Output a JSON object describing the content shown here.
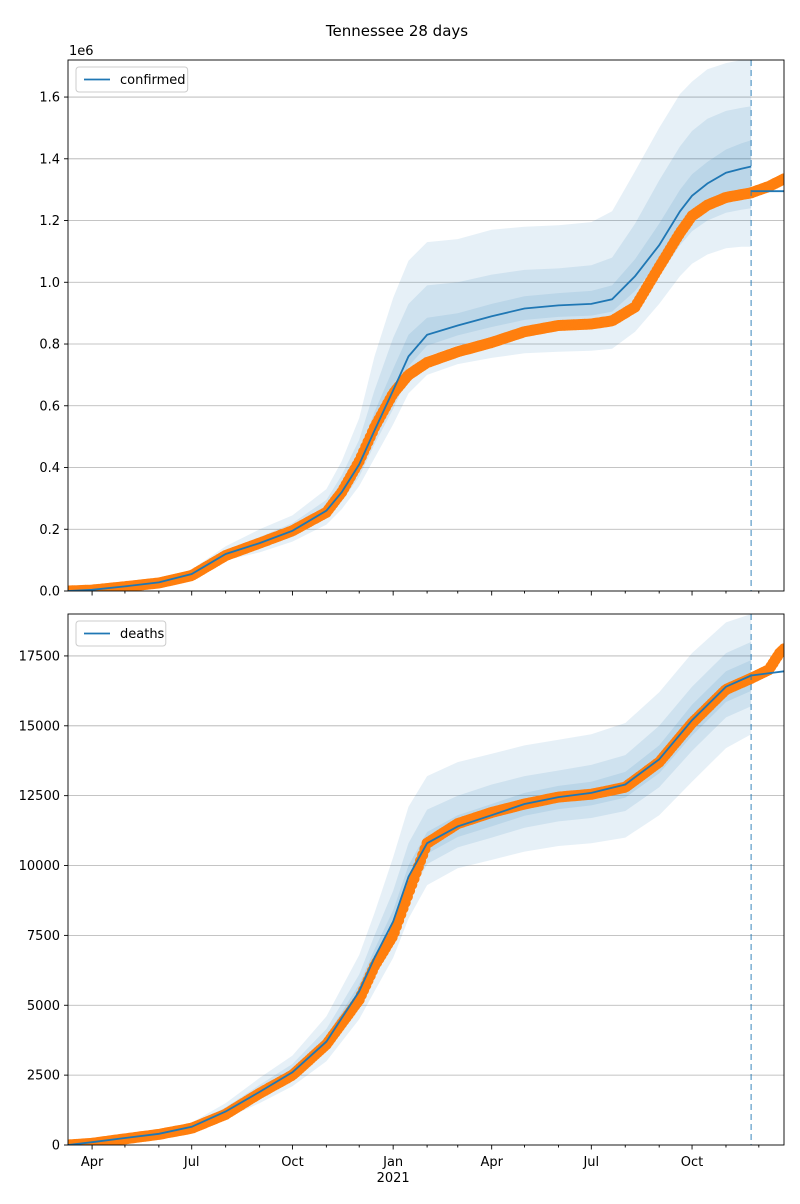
{
  "figure": {
    "title": "Tennessee 28 days"
  },
  "colors": {
    "model_line": "#1f77b4",
    "observed_points": "#ff7f0e",
    "band": "#1f77b4",
    "grid": "#b0b0b0",
    "forecast_marker": "#1f77b4"
  },
  "xaxis": {
    "start": "2020-03-10",
    "end": "2021-12-24",
    "ticks": [
      {
        "date": "2020-04-01",
        "label": "Apr"
      },
      {
        "date": "2020-07-01",
        "label": "Jul"
      },
      {
        "date": "2020-10-01",
        "label": "Oct"
      },
      {
        "date": "2021-01-01",
        "label": "Jan"
      },
      {
        "date": "2021-04-01",
        "label": "Apr"
      },
      {
        "date": "2021-07-01",
        "label": "Jul"
      },
      {
        "date": "2021-10-01",
        "label": "Oct"
      }
    ],
    "year_label": "2021",
    "year_label_date": "2021-01-01",
    "forecast_marker_date": "2021-11-24"
  },
  "chart_data": [
    {
      "type": "line",
      "legend": "confirmed",
      "legend_position": "upper-left",
      "grid": "horizontal",
      "ylim": [
        0,
        1720000
      ],
      "yticks": [
        0,
        200000,
        400000,
        600000,
        800000,
        1000000,
        1200000,
        1400000,
        1600000
      ],
      "ytick_labels": [
        "0.0",
        "0.2",
        "0.4",
        "0.6",
        "0.8",
        "1.0",
        "1.2",
        "1.4",
        "1.6"
      ],
      "offset_label": "1e6",
      "model": {
        "x": [
          "2020-03-10",
          "2020-04-01",
          "2020-05-01",
          "2020-06-01",
          "2020-07-01",
          "2020-08-01",
          "2020-09-01",
          "2020-10-01",
          "2020-11-01",
          "2020-11-15",
          "2020-12-01",
          "2020-12-15",
          "2021-01-01",
          "2021-01-15",
          "2021-02-01",
          "2021-03-01",
          "2021-04-01",
          "2021-05-01",
          "2021-06-01",
          "2021-07-01",
          "2021-07-20",
          "2021-08-10",
          "2021-09-01",
          "2021-09-20",
          "2021-10-01",
          "2021-10-15",
          "2021-11-01",
          "2021-11-15",
          "2021-11-24"
        ],
        "y": [
          0,
          4000,
          15000,
          28000,
          55000,
          120000,
          155000,
          195000,
          260000,
          320000,
          410000,
          520000,
          650000,
          760000,
          830000,
          860000,
          890000,
          915000,
          925000,
          930000,
          945000,
          1020000,
          1120000,
          1230000,
          1280000,
          1320000,
          1355000,
          1368000,
          1375000
        ]
      },
      "model_tail": {
        "x": [
          "2021-11-24",
          "2021-12-24"
        ],
        "y": [
          1295000,
          1295000
        ]
      },
      "bands": [
        {
          "x": [
            "2020-03-10",
            "2020-04-01",
            "2020-05-01",
            "2020-06-01",
            "2020-07-01",
            "2020-08-01",
            "2020-09-01",
            "2020-10-01",
            "2020-11-01",
            "2020-11-15",
            "2020-12-01",
            "2020-12-15",
            "2021-01-01",
            "2021-01-15",
            "2021-02-01",
            "2021-03-01",
            "2021-04-01",
            "2021-05-01",
            "2021-06-01",
            "2021-07-01",
            "2021-07-20",
            "2021-08-10",
            "2021-09-01",
            "2021-09-20",
            "2021-10-01",
            "2021-10-15",
            "2021-11-01",
            "2021-11-15",
            "2021-11-24"
          ],
          "lower": [
            0,
            3000,
            11000,
            20000,
            45000,
            100000,
            125000,
            160000,
            215000,
            265000,
            340000,
            430000,
            540000,
            640000,
            700000,
            735000,
            755000,
            770000,
            775000,
            778000,
            785000,
            840000,
            930000,
            1020000,
            1060000,
            1090000,
            1110000,
            1115000,
            1115000
          ],
          "upper": [
            0,
            6000,
            20000,
            38000,
            70000,
            145000,
            200000,
            245000,
            330000,
            420000,
            560000,
            760000,
            950000,
            1070000,
            1130000,
            1140000,
            1170000,
            1180000,
            1185000,
            1195000,
            1230000,
            1360000,
            1500000,
            1610000,
            1650000,
            1690000,
            1710000,
            1720000,
            1720000
          ]
        },
        {
          "x": [
            "2020-03-10",
            "2020-04-01",
            "2020-05-01",
            "2020-06-01",
            "2020-07-01",
            "2020-08-01",
            "2020-09-01",
            "2020-10-01",
            "2020-11-01",
            "2020-11-15",
            "2020-12-01",
            "2020-12-15",
            "2021-01-01",
            "2021-01-15",
            "2021-02-01",
            "2021-03-01",
            "2021-04-01",
            "2021-05-01",
            "2021-06-01",
            "2021-07-01",
            "2021-07-20",
            "2021-08-10",
            "2021-09-01",
            "2021-09-20",
            "2021-10-01",
            "2021-10-15",
            "2021-11-01",
            "2021-11-15",
            "2021-11-24"
          ],
          "lower": [
            0,
            3500,
            12500,
            23000,
            49000,
            108000,
            138000,
            175000,
            235000,
            290000,
            370000,
            475000,
            590000,
            695000,
            760000,
            795000,
            820000,
            840000,
            848000,
            852000,
            862000,
            925000,
            1020000,
            1120000,
            1165000,
            1200000,
            1225000,
            1235000,
            1240000
          ],
          "upper": [
            0,
            5000,
            18000,
            33000,
            63000,
            133000,
            175000,
            220000,
            295000,
            375000,
            490000,
            650000,
            820000,
            930000,
            990000,
            1000000,
            1025000,
            1040000,
            1045000,
            1055000,
            1080000,
            1190000,
            1330000,
            1440000,
            1490000,
            1530000,
            1555000,
            1565000,
            1570000
          ]
        },
        {
          "x": [
            "2020-03-10",
            "2020-04-01",
            "2020-05-01",
            "2020-06-01",
            "2020-07-01",
            "2020-08-01",
            "2020-09-01",
            "2020-10-01",
            "2020-11-01",
            "2020-11-15",
            "2020-12-01",
            "2020-12-15",
            "2021-01-01",
            "2021-01-15",
            "2021-02-01",
            "2021-03-01",
            "2021-04-01",
            "2021-05-01",
            "2021-06-01",
            "2021-07-01",
            "2021-07-20",
            "2021-08-10",
            "2021-09-01",
            "2021-09-20",
            "2021-10-01",
            "2021-10-15",
            "2021-11-01",
            "2021-11-15",
            "2021-11-24"
          ],
          "lower": [
            0,
            3800,
            13500,
            25500,
            52000,
            114000,
            147000,
            186000,
            248000,
            305000,
            390000,
            498000,
            622000,
            728000,
            795000,
            828000,
            855000,
            878000,
            888000,
            892000,
            905000,
            972000,
            1068000,
            1175000,
            1222000,
            1260000,
            1290000,
            1302000,
            1308000
          ],
          "upper": [
            0,
            4500,
            16500,
            31000,
            59000,
            127000,
            164000,
            206000,
            275000,
            345000,
            445000,
            580000,
            720000,
            830000,
            885000,
            900000,
            930000,
            955000,
            965000,
            972000,
            990000,
            1075000,
            1190000,
            1300000,
            1350000,
            1390000,
            1430000,
            1450000,
            1460000
          ]
        }
      ],
      "observed": {
        "x": [
          "2020-03-10",
          "2020-04-01",
          "2020-05-01",
          "2020-06-01",
          "2020-07-01",
          "2020-08-01",
          "2020-09-01",
          "2020-10-01",
          "2020-11-01",
          "2020-11-15",
          "2020-12-01",
          "2020-12-15",
          "2021-01-01",
          "2021-01-15",
          "2021-02-01",
          "2021-03-01",
          "2021-04-01",
          "2021-05-01",
          "2021-06-01",
          "2021-07-01",
          "2021-07-20",
          "2021-08-10",
          "2021-09-01",
          "2021-09-20",
          "2021-10-01",
          "2021-10-15",
          "2021-11-01",
          "2021-11-24",
          "2021-12-10",
          "2021-12-24"
        ],
        "y": [
          0,
          3000,
          14000,
          26000,
          50000,
          115000,
          155000,
          195000,
          255000,
          320000,
          420000,
          530000,
          640000,
          700000,
          740000,
          775000,
          805000,
          840000,
          860000,
          865000,
          875000,
          920000,
          1050000,
          1160000,
          1215000,
          1250000,
          1275000,
          1290000,
          1310000,
          1335000
        ]
      }
    },
    {
      "type": "line",
      "legend": "deaths",
      "legend_position": "upper-left",
      "grid": "horizontal",
      "ylim": [
        0,
        19000
      ],
      "yticks": [
        0,
        2500,
        5000,
        7500,
        10000,
        12500,
        15000,
        17500
      ],
      "ytick_labels": [
        "0",
        "2500",
        "5000",
        "7500",
        "10000",
        "12500",
        "15000",
        "17500"
      ],
      "model": {
        "x": [
          "2020-03-10",
          "2020-04-01",
          "2020-05-01",
          "2020-06-01",
          "2020-07-01",
          "2020-08-01",
          "2020-09-01",
          "2020-10-01",
          "2020-11-01",
          "2020-12-01",
          "2020-12-15",
          "2021-01-01",
          "2021-01-15",
          "2021-02-01",
          "2021-03-01",
          "2021-04-01",
          "2021-05-01",
          "2021-06-01",
          "2021-07-01",
          "2021-08-01",
          "2021-09-01",
          "2021-10-01",
          "2021-11-01",
          "2021-11-24"
        ],
        "y": [
          0,
          100,
          250,
          400,
          650,
          1200,
          1900,
          2600,
          3700,
          5500,
          6700,
          8000,
          9600,
          10800,
          11400,
          11800,
          12200,
          12450,
          12600,
          12900,
          13800,
          15200,
          16400,
          16800
        ]
      },
      "model_tail": {
        "x": [
          "2021-11-24",
          "2021-12-24"
        ],
        "y": [
          16800,
          16950
        ]
      },
      "bands": [
        {
          "x": [
            "2020-03-10",
            "2020-04-01",
            "2020-05-01",
            "2020-06-01",
            "2020-07-01",
            "2020-08-01",
            "2020-09-01",
            "2020-10-01",
            "2020-11-01",
            "2020-12-01",
            "2020-12-15",
            "2021-01-01",
            "2021-01-15",
            "2021-02-01",
            "2021-03-01",
            "2021-04-01",
            "2021-05-01",
            "2021-06-01",
            "2021-07-01",
            "2021-08-01",
            "2021-09-01",
            "2021-10-01",
            "2021-11-01",
            "2021-11-24"
          ],
          "lower": [
            0,
            70,
            180,
            300,
            520,
            950,
            1500,
            2100,
            3000,
            4500,
            5500,
            6700,
            8100,
            9300,
            9900,
            10200,
            10500,
            10700,
            10800,
            11000,
            11800,
            13000,
            14200,
            14700
          ],
          "upper": [
            0,
            140,
            330,
            520,
            800,
            1500,
            2400,
            3200,
            4600,
            6800,
            8300,
            10300,
            12100,
            13200,
            13700,
            14000,
            14300,
            14500,
            14700,
            15100,
            16200,
            17600,
            18700,
            19000
          ]
        },
        {
          "x": [
            "2020-03-10",
            "2020-04-01",
            "2020-05-01",
            "2020-06-01",
            "2020-07-01",
            "2020-08-01",
            "2020-09-01",
            "2020-10-01",
            "2020-11-01",
            "2020-12-01",
            "2020-12-15",
            "2021-01-01",
            "2021-01-15",
            "2021-02-01",
            "2021-03-01",
            "2021-04-01",
            "2021-05-01",
            "2021-06-01",
            "2021-07-01",
            "2021-08-01",
            "2021-09-01",
            "2021-10-01",
            "2021-11-01",
            "2021-11-24"
          ],
          "lower": [
            0,
            80,
            210,
            340,
            580,
            1060,
            1680,
            2330,
            3330,
            5000,
            6100,
            7350,
            8850,
            10050,
            10650,
            11000,
            11350,
            11580,
            11700,
            11950,
            12800,
            14100,
            15300,
            15700
          ],
          "upper": [
            0,
            120,
            290,
            460,
            720,
            1350,
            2150,
            2900,
            4150,
            6100,
            7500,
            9100,
            10800,
            12000,
            12500,
            12900,
            13200,
            13400,
            13600,
            13950,
            15000,
            16400,
            17600,
            18000
          ]
        },
        {
          "x": [
            "2020-03-10",
            "2020-04-01",
            "2020-05-01",
            "2020-06-01",
            "2020-07-01",
            "2020-08-01",
            "2020-09-01",
            "2020-10-01",
            "2020-11-01",
            "2020-12-01",
            "2020-12-15",
            "2021-01-01",
            "2021-01-15",
            "2021-02-01",
            "2021-03-01",
            "2021-04-01",
            "2021-05-01",
            "2021-06-01",
            "2021-07-01",
            "2021-08-01",
            "2021-09-01",
            "2021-10-01",
            "2021-11-01",
            "2021-11-24"
          ],
          "lower": [
            0,
            90,
            230,
            370,
            620,
            1130,
            1790,
            2470,
            3520,
            5250,
            6400,
            7680,
            9230,
            10420,
            11020,
            11400,
            11780,
            12020,
            12150,
            12430,
            13300,
            14650,
            15850,
            16250
          ],
          "upper": [
            0,
            110,
            270,
            430,
            680,
            1270,
            2010,
            2730,
            3880,
            5750,
            7000,
            8400,
            10000,
            11200,
            11800,
            12200,
            12600,
            12850,
            13000,
            13350,
            14300,
            15750,
            16950,
            17350
          ]
        }
      ],
      "observed": {
        "x": [
          "2020-03-10",
          "2020-04-01",
          "2020-05-01",
          "2020-06-01",
          "2020-07-01",
          "2020-08-01",
          "2020-09-01",
          "2020-10-01",
          "2020-11-01",
          "2020-12-01",
          "2020-12-15",
          "2021-01-01",
          "2021-01-15",
          "2021-02-01",
          "2021-03-01",
          "2021-04-01",
          "2021-05-01",
          "2021-06-01",
          "2021-07-01",
          "2021-08-01",
          "2021-09-01",
          "2021-10-01",
          "2021-11-01",
          "2021-11-24",
          "2021-12-10",
          "2021-12-20",
          "2021-12-24"
        ],
        "y": [
          0,
          60,
          220,
          380,
          600,
          1100,
          1850,
          2500,
          3600,
          5200,
          6400,
          7500,
          9000,
          10800,
          11500,
          11900,
          12200,
          12450,
          12550,
          12800,
          13700,
          15100,
          16300,
          16700,
          17000,
          17600,
          17750
        ]
      }
    }
  ]
}
